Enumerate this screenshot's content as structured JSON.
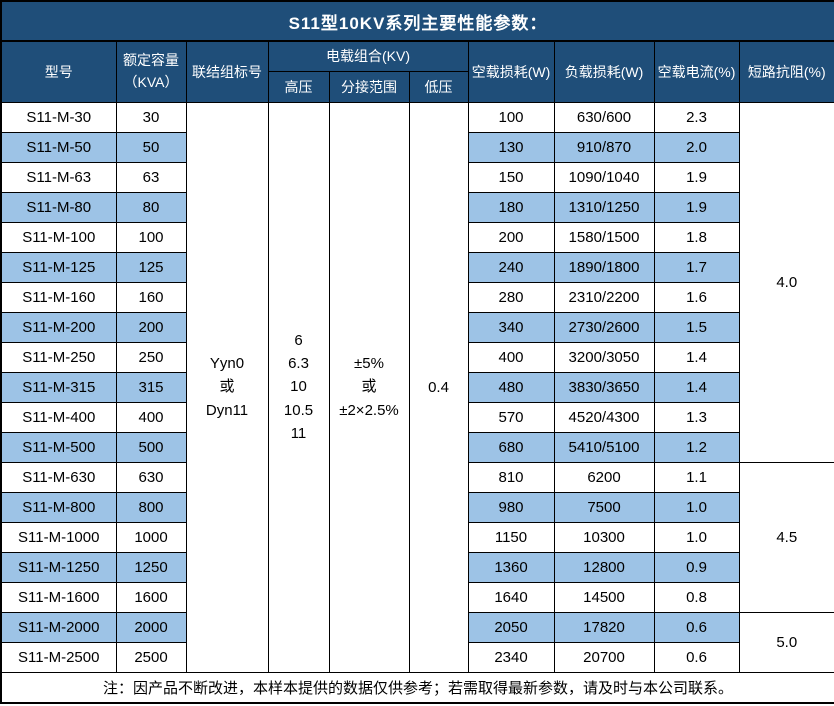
{
  "title": "S11型10KV系列主要性能参数：",
  "header": {
    "model": "型号",
    "capacity": "额定容量\n（KVA）",
    "connection": "联结组标号",
    "voltage_combo": "电载组合(KV)",
    "hv": "高压",
    "tap_range": "分接范围",
    "lv": "低压",
    "no_load_loss": "空载损耗(W)",
    "load_loss": "负载损耗(W)",
    "no_load_current": "空载电流(%)",
    "impedance": "短路抗阻(%)"
  },
  "merged_cells": {
    "connection": "Yyn0\n或\nDyn11",
    "hv": "6\n6.3\n10\n10.5\n11",
    "tap_range": "±5%\n或\n±2×2.5%",
    "lv": "0.4"
  },
  "rows": [
    {
      "model": "S11-M-30",
      "capacity": "30",
      "no_load_loss": "100",
      "load_loss": "630/600",
      "no_load_current": "2.3"
    },
    {
      "model": "S11-M-50",
      "capacity": "50",
      "no_load_loss": "130",
      "load_loss": "910/870",
      "no_load_current": "2.0"
    },
    {
      "model": "S11-M-63",
      "capacity": "63",
      "no_load_loss": "150",
      "load_loss": "1090/1040",
      "no_load_current": "1.9"
    },
    {
      "model": "S11-M-80",
      "capacity": "80",
      "no_load_loss": "180",
      "load_loss": "1310/1250",
      "no_load_current": "1.9"
    },
    {
      "model": "S11-M-100",
      "capacity": "100",
      "no_load_loss": "200",
      "load_loss": "1580/1500",
      "no_load_current": "1.8"
    },
    {
      "model": "S11-M-125",
      "capacity": "125",
      "no_load_loss": "240",
      "load_loss": "1890/1800",
      "no_load_current": "1.7"
    },
    {
      "model": "S11-M-160",
      "capacity": "160",
      "no_load_loss": "280",
      "load_loss": "2310/2200",
      "no_load_current": "1.6"
    },
    {
      "model": "S11-M-200",
      "capacity": "200",
      "no_load_loss": "340",
      "load_loss": "2730/2600",
      "no_load_current": "1.5"
    },
    {
      "model": "S11-M-250",
      "capacity": "250",
      "no_load_loss": "400",
      "load_loss": "3200/3050",
      "no_load_current": "1.4"
    },
    {
      "model": "S11-M-315",
      "capacity": "315",
      "no_load_loss": "480",
      "load_loss": "3830/3650",
      "no_load_current": "1.4"
    },
    {
      "model": "S11-M-400",
      "capacity": "400",
      "no_load_loss": "570",
      "load_loss": "4520/4300",
      "no_load_current": "1.3"
    },
    {
      "model": "S11-M-500",
      "capacity": "500",
      "no_load_loss": "680",
      "load_loss": "5410/5100",
      "no_load_current": "1.2"
    },
    {
      "model": "S11-M-630",
      "capacity": "630",
      "no_load_loss": "810",
      "load_loss": "6200",
      "no_load_current": "1.1"
    },
    {
      "model": "S11-M-800",
      "capacity": "800",
      "no_load_loss": "980",
      "load_loss": "7500",
      "no_load_current": "1.0"
    },
    {
      "model": "S11-M-1000",
      "capacity": "1000",
      "no_load_loss": "1150",
      "load_loss": "10300",
      "no_load_current": "1.0"
    },
    {
      "model": "S11-M-1250",
      "capacity": "1250",
      "no_load_loss": "1360",
      "load_loss": "12800",
      "no_load_current": "0.9"
    },
    {
      "model": "S11-M-1600",
      "capacity": "1600",
      "no_load_loss": "1640",
      "load_loss": "14500",
      "no_load_current": "0.8"
    },
    {
      "model": "S11-M-2000",
      "capacity": "2000",
      "no_load_loss": "2050",
      "load_loss": "17820",
      "no_load_current": "0.6"
    },
    {
      "model": "S11-M-2500",
      "capacity": "2500",
      "no_load_loss": "2340",
      "load_loss": "20700",
      "no_load_current": "0.6"
    }
  ],
  "impedance_groups": [
    {
      "value": "4.0",
      "span": 12
    },
    {
      "value": "4.5",
      "span": 5
    },
    {
      "value": "5.0",
      "span": 2
    }
  ],
  "footer_note": "注：因产品不断改进，本样本提供的数据仅供参考；若需取得最新参数，请及时与本公司联系。",
  "colors": {
    "header_bg": "#1F4E79",
    "stripe_bg": "#9DC3E6",
    "grid_line": "#000000",
    "header_text": "#FFFFFF",
    "body_text": "#000000"
  }
}
